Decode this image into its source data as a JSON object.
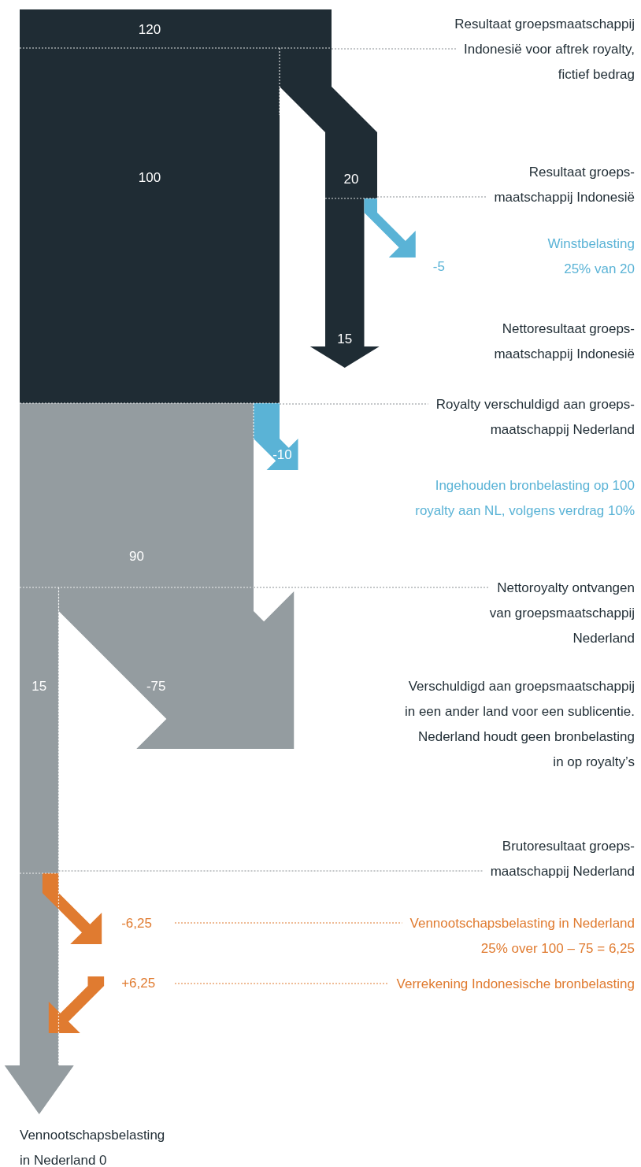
{
  "chart_data": {
    "type": "other",
    "values": [
      120,
      100,
      20,
      -5,
      15,
      -10,
      90,
      15,
      -75,
      -6.25,
      6.25
    ],
    "value_labels": [
      "120",
      "100",
      "20",
      "-5",
      "15",
      "-10",
      "90",
      "15",
      "-75",
      "-6,25",
      "+6,25"
    ],
    "colors": [
      "#1f2c34",
      "#1f2c34",
      "#1f2c34",
      "#5ab3d6",
      "#1f2c34",
      "#5ab3d6",
      "#949ca0",
      "#949ca0",
      "#949ca0",
      "#e07b30",
      "#e07b30"
    ],
    "annotations": [
      "Resultaat groepsmaatschappij\nIndonesië voor aftrek royalty,\nfictief bedrag",
      "Resultaat groeps-\nmaatschappij Indonesië",
      "Winstbelasting\n25% van 20",
      "Nettoresultaat groeps-\nmaatschappij Indonesië",
      "Royalty verschuldigd aan groeps-\nmaatschappij Nederland",
      "Ingehouden bronbelasting op 100\nroyalty aan NL, volgens verdrag 10%",
      "Nettoroyalty ontvangen\nvan groepsmaatschappij\nNederland",
      "Verschuldigd aan groepsmaatschappij\nin een ander land voor een sublicentie.\nNederland houdt geen bronbelasting\nin op royalty’s",
      "Brutoresultaat groeps-\nmaatschappij Nederland",
      "Vennootschapsbelasting in Nederland\n25% over 100 – 75 = 6,25",
      "Verrekening Indonesische bronbelasting",
      "Vennootschapsbelasting\nin Nederland 0"
    ]
  }
}
